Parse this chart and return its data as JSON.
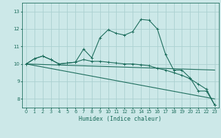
{
  "xlabel": "Humidex (Indice chaleur)",
  "xlim": [
    -0.5,
    23.5
  ],
  "ylim": [
    7.5,
    13.5
  ],
  "yticks": [
    8,
    9,
    10,
    11,
    12,
    13
  ],
  "xticks": [
    0,
    1,
    2,
    3,
    4,
    5,
    6,
    7,
    8,
    9,
    10,
    11,
    12,
    13,
    14,
    15,
    16,
    17,
    18,
    19,
    20,
    21,
    22,
    23
  ],
  "background_color": "#cce8e8",
  "grid_color": "#aad0d0",
  "line_color": "#1a6b5a",
  "lines": [
    {
      "markers": true,
      "x": [
        0,
        1,
        2,
        3,
        4,
        5,
        6,
        7,
        8,
        9,
        10,
        11,
        12,
        13,
        14,
        15,
        16,
        17,
        18,
        19,
        20,
        21,
        22,
        23
      ],
      "y": [
        10.0,
        10.3,
        10.45,
        10.25,
        10.0,
        10.05,
        10.1,
        10.85,
        10.35,
        11.5,
        11.95,
        11.75,
        11.65,
        11.85,
        12.55,
        12.5,
        12.0,
        10.55,
        9.65,
        9.65,
        9.2,
        8.45,
        8.45,
        7.65
      ]
    },
    {
      "markers": true,
      "x": [
        0,
        1,
        2,
        3,
        4,
        5,
        6,
        7,
        8,
        9,
        10,
        11,
        12,
        13,
        14,
        15,
        16,
        17,
        18,
        19,
        20,
        21,
        22,
        23
      ],
      "y": [
        10.0,
        10.3,
        10.45,
        10.25,
        10.0,
        10.05,
        10.1,
        10.25,
        10.15,
        10.15,
        10.1,
        10.05,
        10.0,
        10.0,
        9.95,
        9.9,
        9.75,
        9.65,
        9.5,
        9.35,
        9.15,
        8.85,
        8.55,
        7.65
      ]
    },
    {
      "markers": false,
      "x": [
        0,
        23
      ],
      "y": [
        10.0,
        9.65
      ]
    },
    {
      "markers": false,
      "x": [
        0,
        23
      ],
      "y": [
        10.0,
        8.0
      ]
    }
  ]
}
